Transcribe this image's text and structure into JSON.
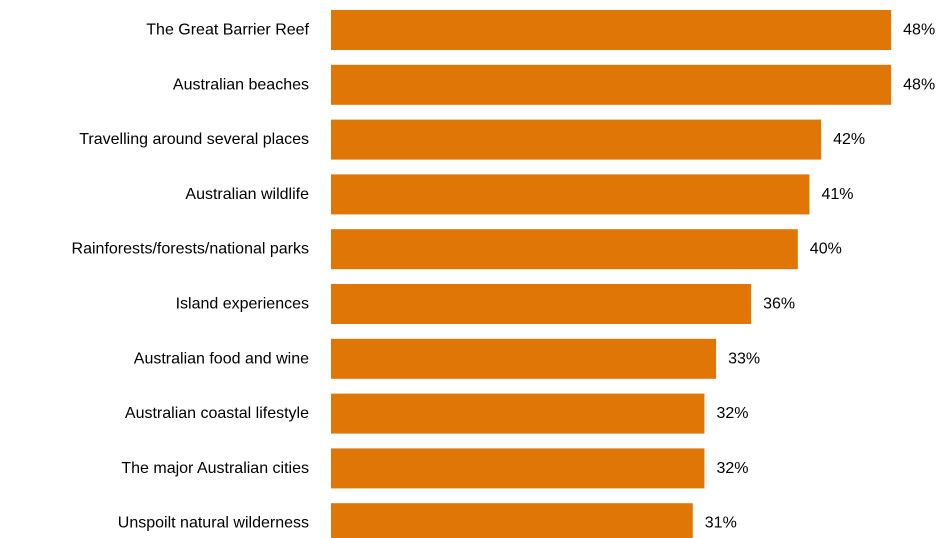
{
  "chart_data": {
    "type": "bar",
    "orientation": "horizontal",
    "categories": [
      "The Great Barrier Reef",
      "Australian beaches",
      "Travelling around several places",
      "Australian wildlife",
      "Rainforests/forests/national parks",
      "Island experiences",
      "Australian food and wine",
      "Australian coastal lifestyle",
      "The major Australian cities",
      "Unspoilt natural wilderness"
    ],
    "values": [
      48,
      48,
      42,
      41,
      40,
      36,
      33,
      32,
      32,
      31
    ],
    "value_labels": [
      "48%",
      "48%",
      "42%",
      "41%",
      "40%",
      "36%",
      "33%",
      "32%",
      "32%",
      "31%"
    ],
    "unit": "%",
    "bar_color": "#E07606",
    "title": "",
    "xlabel": "",
    "ylabel": "",
    "grid": false,
    "legend": "none"
  }
}
